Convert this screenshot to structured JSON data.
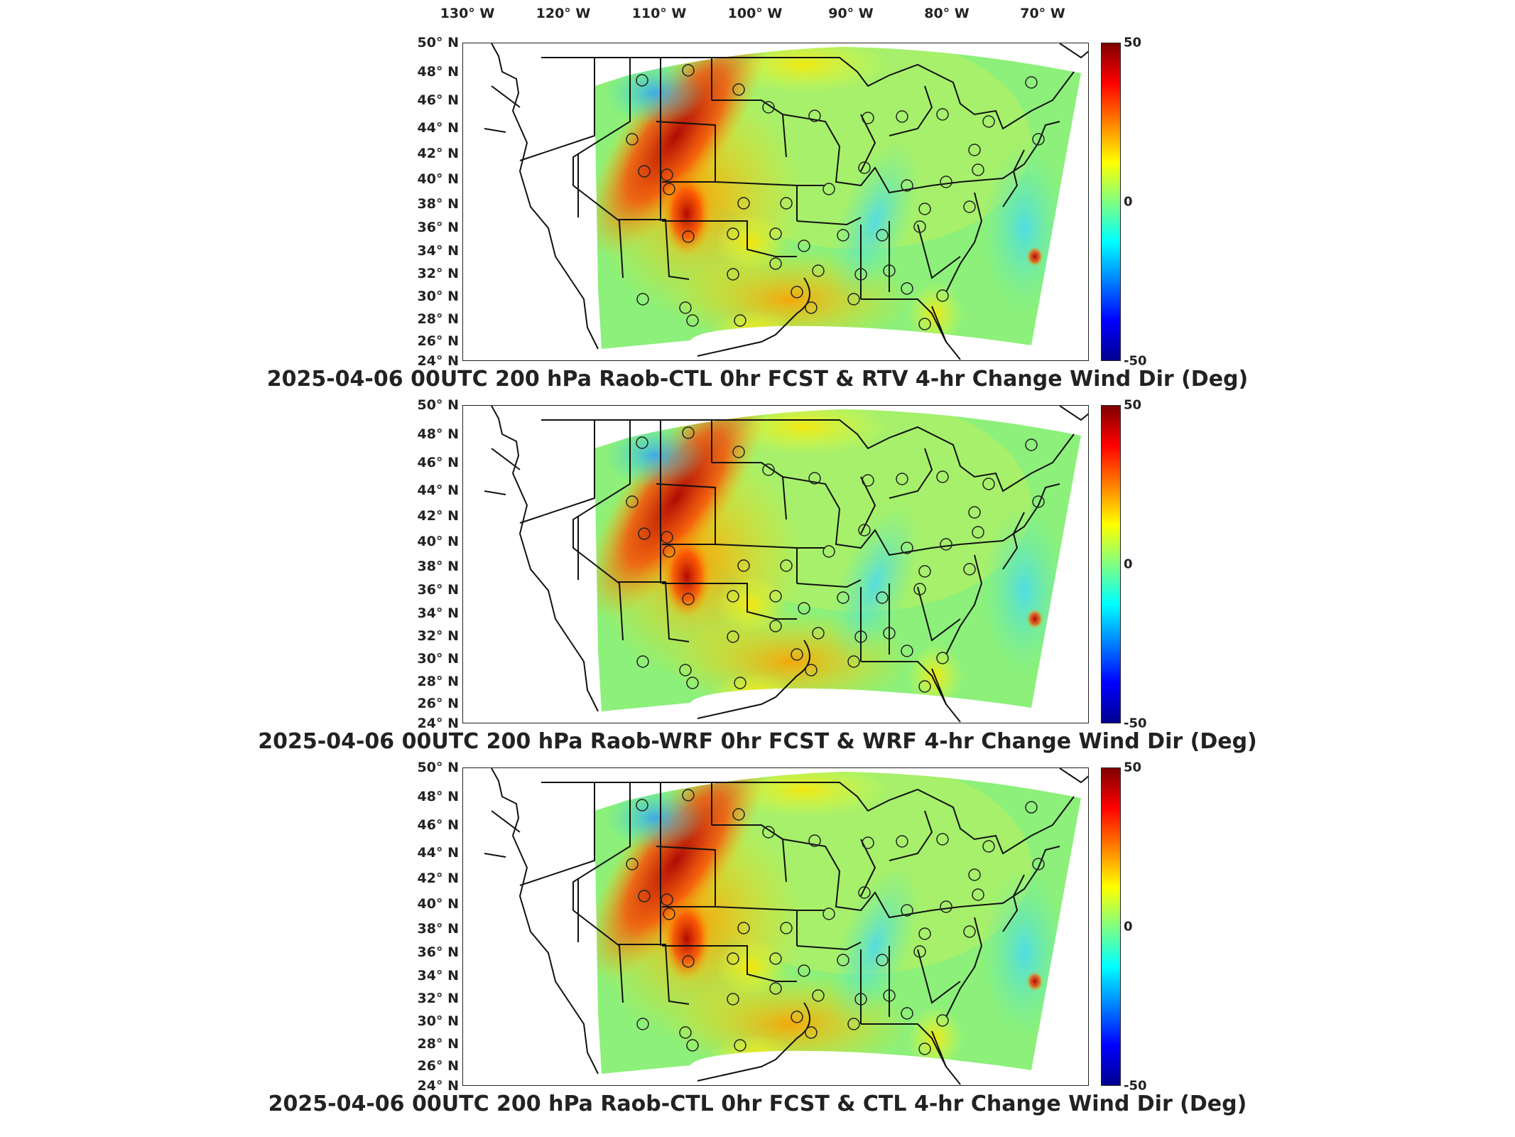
{
  "lon_labels": [
    "130° W",
    "120° W",
    "110° W",
    "100° W",
    "90° W",
    "80° W",
    "70° W"
  ],
  "lat_labels": [
    "50° N",
    "48° N",
    "46° N",
    "44° N",
    "42° N",
    "40° N",
    "38° N",
    "36° N",
    "34° N",
    "32° N",
    "30° N",
    "28° N",
    "26° N",
    "24° N"
  ],
  "colorbar": {
    "max": "50",
    "mid": "0",
    "min": "-50",
    "colors": [
      "#7f0000",
      "#ff0000",
      "#ff8000",
      "#ffff00",
      "#80ff80",
      "#00ffff",
      "#0080ff",
      "#0000ff",
      "#00008f"
    ]
  },
  "panels": [
    {
      "title": "2025-04-06 00UTC 200 hPa Raob-CTL 0hr FCST & RTV 4-hr Change Wind Dir (Deg)"
    },
    {
      "title": "2025-04-06 00UTC 200 hPa Raob-WRF 0hr FCST & WRF 4-hr Change Wind Dir (Deg)"
    },
    {
      "title": "2025-04-06 00UTC 200 hPa Raob-CTL 0hr FCST & CTL 4-hr Change Wind Dir (Deg)"
    }
  ]
}
